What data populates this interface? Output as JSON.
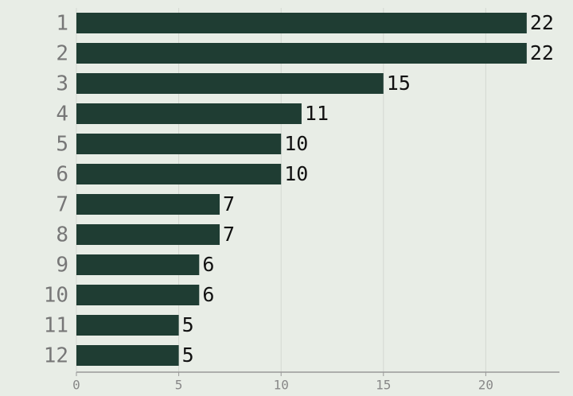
{
  "chart_data": {
    "type": "hbar",
    "categories": [
      "1",
      "2",
      "3",
      "4",
      "5",
      "6",
      "7",
      "8",
      "9",
      "10",
      "11",
      "12"
    ],
    "values": [
      22,
      22,
      15,
      11,
      10,
      10,
      7,
      7,
      6,
      6,
      5,
      5
    ],
    "color": "#1f3d33",
    "xlim": [
      0,
      23.6
    ],
    "xticks": [
      0,
      5,
      10,
      15,
      20
    ],
    "grid": true
  }
}
